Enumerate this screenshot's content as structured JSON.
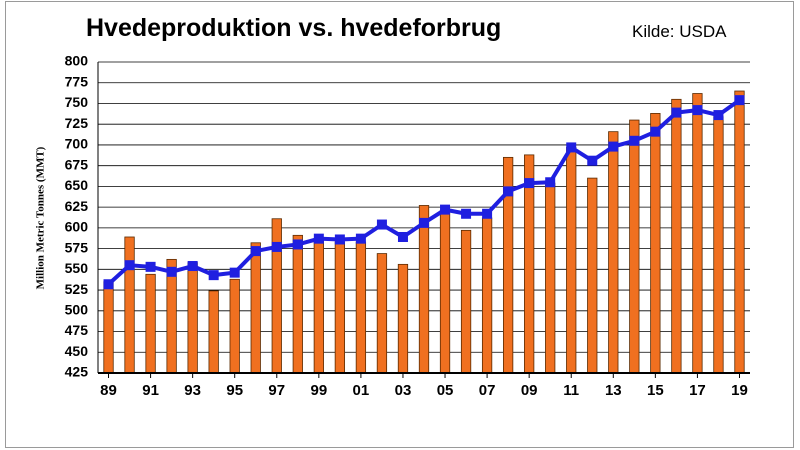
{
  "title": "Hvedeproduktion vs. hvedeforbrug",
  "source": "Kilde: USDA",
  "chart_data": {
    "type": "bar",
    "title": "Hvedeproduktion vs. hvedeforbrug",
    "xlabel": "",
    "ylabel": "Million Metric Tonnes (MMT)",
    "ylim": [
      425,
      800
    ],
    "yticks": [
      425,
      450,
      475,
      500,
      525,
      550,
      575,
      600,
      625,
      650,
      675,
      700,
      725,
      750,
      775,
      800
    ],
    "grid": true,
    "categories": [
      "89",
      "90",
      "91",
      "92",
      "93",
      "94",
      "95",
      "96",
      "97",
      "98",
      "99",
      "00",
      "01",
      "02",
      "03",
      "04",
      "05",
      "06",
      "07",
      "08",
      "09",
      "10",
      "11",
      "12",
      "13",
      "14",
      "15",
      "16",
      "17",
      "18",
      "19"
    ],
    "xtick_labels": [
      "89",
      "91",
      "93",
      "95",
      "97",
      "99",
      "01",
      "03",
      "05",
      "07",
      "09",
      "11",
      "13",
      "15",
      "17",
      "19"
    ],
    "series": [
      {
        "type": "bar",
        "color": "#f07020",
        "values": [
          535,
          589,
          544,
          562,
          558,
          524,
          538,
          582,
          611,
          591,
          586,
          583,
          583,
          569,
          556,
          627,
          621,
          597,
          612,
          685,
          688,
          654,
          697,
          660,
          716,
          730,
          738,
          755,
          762,
          734,
          765
        ]
      },
      {
        "type": "line",
        "color": "#1f1fe0",
        "marker": "square",
        "values": [
          532,
          555,
          553,
          547,
          554,
          543,
          546,
          572,
          577,
          580,
          587,
          586,
          587,
          604,
          589,
          606,
          622,
          617,
          617,
          644,
          654,
          655,
          697,
          681,
          698,
          705,
          716,
          739,
          742,
          736,
          754
        ]
      }
    ]
  }
}
